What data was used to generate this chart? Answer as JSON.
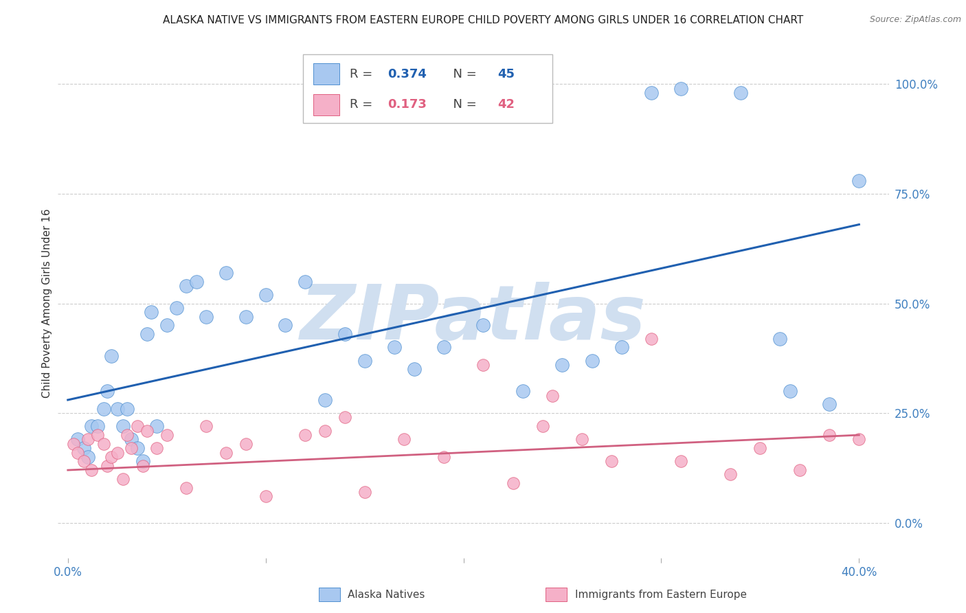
{
  "title": "ALASKA NATIVE VS IMMIGRANTS FROM EASTERN EUROPE CHILD POVERTY AMONG GIRLS UNDER 16 CORRELATION CHART",
  "source": "Source: ZipAtlas.com",
  "ylabel": "Child Poverty Among Girls Under 16",
  "xlim": [
    -0.5,
    41.5
  ],
  "ylim": [
    -8,
    108
  ],
  "blue_R": 0.374,
  "blue_N": 45,
  "pink_R": 0.173,
  "pink_N": 42,
  "blue_color": "#a8c8f0",
  "pink_color": "#f5b0c8",
  "blue_edge_color": "#5090d0",
  "pink_edge_color": "#e06080",
  "blue_line_color": "#2060b0",
  "pink_line_color": "#d06080",
  "watermark": "ZIPatlas",
  "watermark_color": "#d0dff0",
  "legend_label_blue": "Alaska Natives",
  "legend_label_pink": "Immigrants from Eastern Europe",
  "blue_scatter_x": [
    0.5,
    0.8,
    1.0,
    1.2,
    1.5,
    1.8,
    2.0,
    2.2,
    2.5,
    2.8,
    3.0,
    3.2,
    3.5,
    3.8,
    4.0,
    4.2,
    4.5,
    5.0,
    5.5,
    6.0,
    6.5,
    7.0,
    8.0,
    9.0,
    10.0,
    11.0,
    12.0,
    13.0,
    14.0,
    15.0,
    16.5,
    17.5,
    19.0,
    21.0,
    23.0,
    25.0,
    26.5,
    28.0,
    29.5,
    31.0,
    34.0,
    36.5,
    36.0,
    38.5,
    40.0
  ],
  "blue_scatter_y": [
    19,
    17,
    15,
    22,
    22,
    26,
    30,
    38,
    26,
    22,
    26,
    19,
    17,
    14,
    43,
    48,
    22,
    45,
    49,
    54,
    55,
    47,
    57,
    47,
    52,
    45,
    55,
    28,
    43,
    37,
    40,
    35,
    40,
    45,
    30,
    36,
    37,
    40,
    98,
    99,
    98,
    30,
    42,
    27,
    78
  ],
  "blue_line_x0": 0,
  "blue_line_x1": 40,
  "blue_line_y0": 28,
  "blue_line_y1": 68,
  "pink_scatter_x": [
    0.3,
    0.5,
    0.8,
    1.0,
    1.2,
    1.5,
    1.8,
    2.0,
    2.2,
    2.5,
    2.8,
    3.0,
    3.2,
    3.5,
    3.8,
    4.0,
    4.5,
    5.0,
    6.0,
    7.0,
    8.0,
    9.0,
    10.0,
    12.0,
    13.0,
    14.0,
    15.0,
    17.0,
    19.0,
    21.0,
    22.5,
    24.0,
    26.0,
    27.5,
    29.5,
    31.0,
    33.5,
    35.0,
    37.0,
    38.5,
    40.0,
    24.5
  ],
  "pink_scatter_y": [
    18,
    16,
    14,
    19,
    12,
    20,
    18,
    13,
    15,
    16,
    10,
    20,
    17,
    22,
    13,
    21,
    17,
    20,
    8,
    22,
    16,
    18,
    6,
    20,
    21,
    24,
    7,
    19,
    15,
    36,
    9,
    22,
    19,
    14,
    42,
    14,
    11,
    17,
    12,
    20,
    19,
    29
  ],
  "pink_line_x0": 0,
  "pink_line_x1": 40,
  "pink_line_y0": 12,
  "pink_line_y1": 20,
  "dot_size_blue": 200,
  "dot_size_pink": 160,
  "ylabel_vals": [
    0,
    25,
    50,
    75,
    100
  ],
  "ylabel_ticks": [
    "0.0%",
    "25.0%",
    "50.0%",
    "75.0%",
    "100.0%"
  ],
  "xlabel_vals": [
    0,
    10,
    20,
    30,
    40
  ],
  "xlabel_ticks": [
    "0.0%",
    "",
    "",
    "",
    "40.0%"
  ],
  "tick_color": "#4080c0",
  "grid_color": "#cccccc"
}
